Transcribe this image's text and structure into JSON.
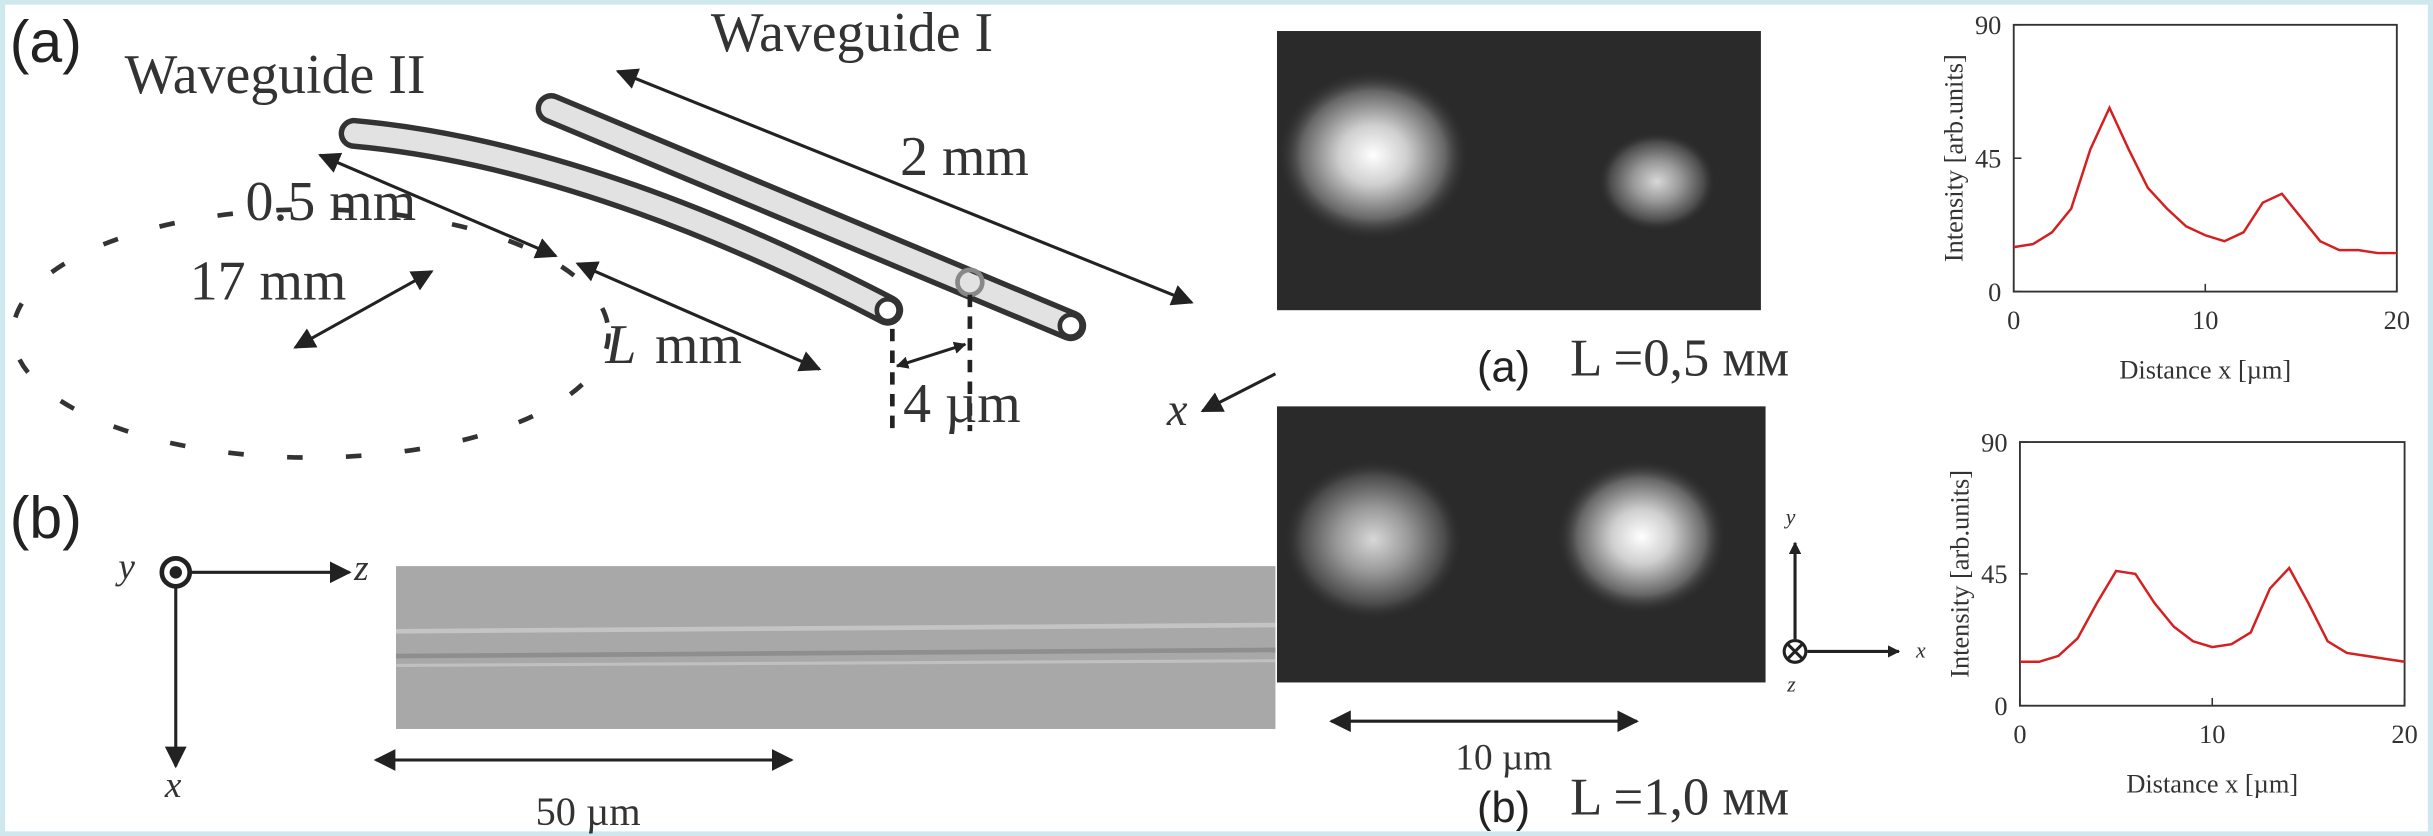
{
  "panel_a": {
    "label": "(a)",
    "waveguide_2": "Waveguide II",
    "waveguide_1": "Waveguide I",
    "length_1": "2 mm",
    "length_2": "0.5 mm",
    "radius": "17 mm",
    "length_var": "L",
    "length_var_unit": "mm",
    "separation": "4 µm",
    "axis_x": "x"
  },
  "panel_b": {
    "label": "(b)",
    "axis_y": "y",
    "axis_z": "z",
    "axis_x": "x",
    "scale": "50 µm"
  },
  "modes": [
    {
      "label": "(a)",
      "caption": "L =0,5 мм"
    },
    {
      "label": "(b)",
      "caption": "L =1,0 мм"
    }
  ],
  "mode_scale": "10 µm",
  "mode_axes": {
    "y": "y",
    "x": "x",
    "z": "z"
  },
  "chart_data": [
    {
      "type": "line",
      "xlabel": "Distance x [µm]",
      "ylabel": "Intensity [arb.units]",
      "x": [
        0,
        1,
        2,
        3,
        4,
        5,
        6,
        7,
        8,
        9,
        10,
        11,
        12,
        13,
        14,
        15,
        16,
        17,
        18,
        19,
        20
      ],
      "values": [
        15,
        16,
        20,
        28,
        48,
        62,
        48,
        35,
        28,
        22,
        19,
        17,
        20,
        30,
        33,
        25,
        17,
        14,
        14,
        13,
        13
      ],
      "color": "#d42020",
      "xlim": [
        0,
        20
      ],
      "ylim": [
        0,
        90
      ],
      "xticks": [
        0,
        10,
        20
      ],
      "yticks": [
        0,
        45,
        90
      ]
    },
    {
      "type": "line",
      "xlabel": "Distance x [µm]",
      "ylabel": "Intensity [arb.units]",
      "x": [
        0,
        1,
        2,
        3,
        4,
        5,
        6,
        7,
        8,
        9,
        10,
        11,
        12,
        13,
        14,
        15,
        16,
        17,
        18,
        19,
        20
      ],
      "values": [
        15,
        15,
        17,
        23,
        35,
        46,
        45,
        35,
        27,
        22,
        20,
        21,
        25,
        40,
        47,
        35,
        22,
        18,
        17,
        16,
        15
      ],
      "color": "#d42020",
      "xlim": [
        0,
        20
      ],
      "ylim": [
        0,
        90
      ],
      "xticks": [
        0,
        10,
        20
      ],
      "yticks": [
        0,
        45,
        90
      ]
    }
  ]
}
